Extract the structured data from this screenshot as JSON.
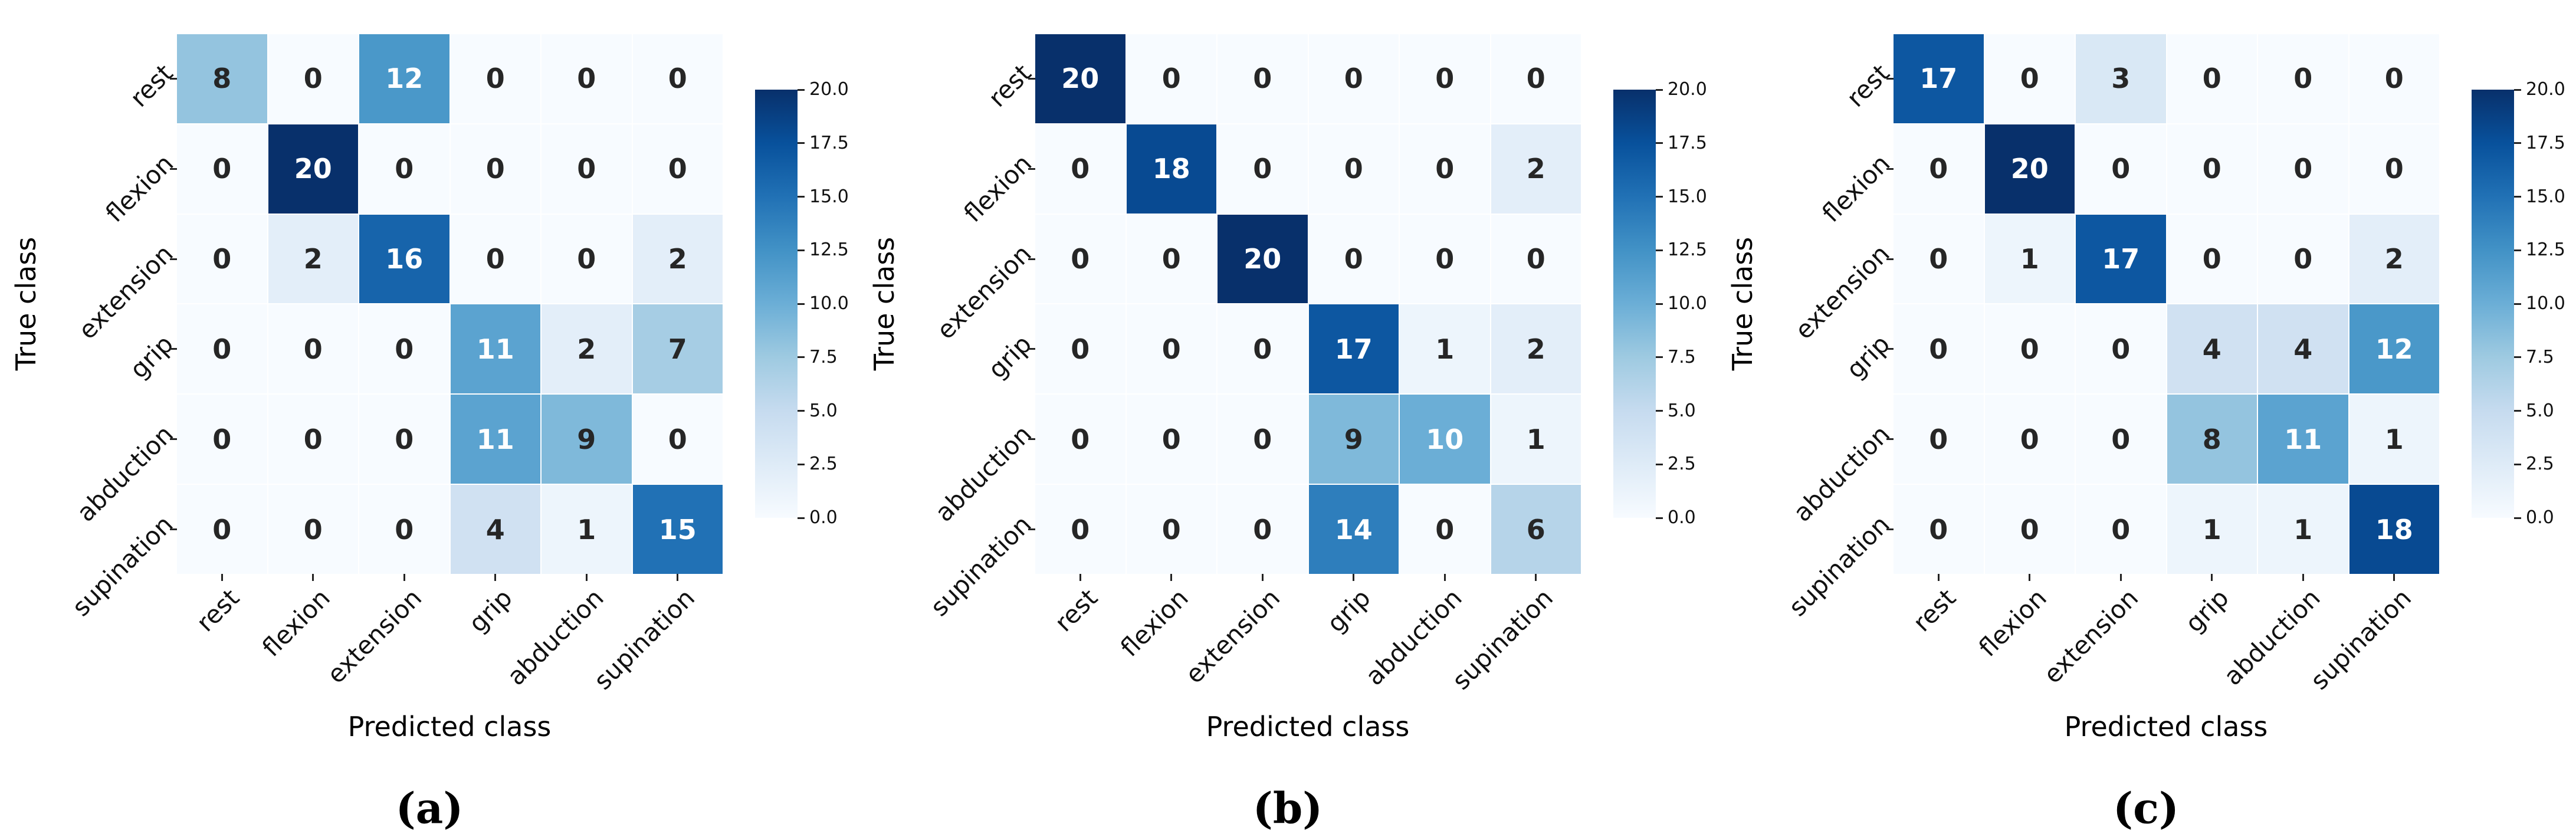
{
  "figure": {
    "background": "#ffffff",
    "x_label": "Predicted class",
    "y_label": "True class",
    "classes": [
      "rest",
      "flexion",
      "extension",
      "grip",
      "abduction",
      "supination"
    ],
    "annot_colors": {
      "dark": "#262626",
      "light": "#ffffff"
    },
    "tick_color": "#222222",
    "colormap": {
      "name": "Blues",
      "stops": [
        [
          0.0,
          "#f7fbff"
        ],
        [
          0.125,
          "#deebf7"
        ],
        [
          0.25,
          "#c6dbef"
        ],
        [
          0.375,
          "#9ecae1"
        ],
        [
          0.5,
          "#6baed6"
        ],
        [
          0.625,
          "#4292c6"
        ],
        [
          0.75,
          "#2171b5"
        ],
        [
          0.875,
          "#08519c"
        ],
        [
          1.0,
          "#08306b"
        ]
      ]
    },
    "colorbar": {
      "min": 0,
      "max": 20,
      "tick_labels_top_to_bottom": [
        "20.0",
        "17.5",
        "15.0",
        "12.5",
        "10.0",
        "7.5",
        "5.0",
        "2.5",
        "0.0"
      ]
    }
  },
  "panels": [
    {
      "caption": "(a)"
    },
    {
      "caption": "(b)"
    },
    {
      "caption": "(c)"
    }
  ],
  "chart_data": [
    {
      "type": "heatmap",
      "title": "(a)",
      "xlabel": "Predicted class",
      "ylabel": "True class",
      "categories_x": [
        "rest",
        "flexion",
        "extension",
        "grip",
        "abduction",
        "supination"
      ],
      "categories_y": [
        "rest",
        "flexion",
        "extension",
        "grip",
        "abduction",
        "supination"
      ],
      "vmin": 0,
      "vmax": 20,
      "colormap": "Blues",
      "legend_position": "right-colorbar",
      "values": [
        [
          8,
          0,
          12,
          0,
          0,
          0
        ],
        [
          0,
          20,
          0,
          0,
          0,
          0
        ],
        [
          0,
          2,
          16,
          0,
          0,
          2
        ],
        [
          0,
          0,
          0,
          11,
          2,
          7
        ],
        [
          0,
          0,
          0,
          11,
          9,
          0
        ],
        [
          0,
          0,
          0,
          4,
          1,
          15
        ]
      ]
    },
    {
      "type": "heatmap",
      "title": "(b)",
      "xlabel": "Predicted class",
      "ylabel": "True class",
      "categories_x": [
        "rest",
        "flexion",
        "extension",
        "grip",
        "abduction",
        "supination"
      ],
      "categories_y": [
        "rest",
        "flexion",
        "extension",
        "grip",
        "abduction",
        "supination"
      ],
      "vmin": 0,
      "vmax": 20,
      "colormap": "Blues",
      "legend_position": "right-colorbar",
      "values": [
        [
          20,
          0,
          0,
          0,
          0,
          0
        ],
        [
          0,
          18,
          0,
          0,
          0,
          2
        ],
        [
          0,
          0,
          20,
          0,
          0,
          0
        ],
        [
          0,
          0,
          0,
          17,
          1,
          2
        ],
        [
          0,
          0,
          0,
          9,
          10,
          1
        ],
        [
          0,
          0,
          0,
          14,
          0,
          6
        ]
      ]
    },
    {
      "type": "heatmap",
      "title": "(c)",
      "xlabel": "Predicted class",
      "ylabel": "True class",
      "categories_x": [
        "rest",
        "flexion",
        "extension",
        "grip",
        "abduction",
        "supination"
      ],
      "categories_y": [
        "rest",
        "flexion",
        "extension",
        "grip",
        "abduction",
        "supination"
      ],
      "vmin": 0,
      "vmax": 20,
      "colormap": "Blues",
      "legend_position": "right-colorbar",
      "values": [
        [
          17,
          0,
          3,
          0,
          0,
          0
        ],
        [
          0,
          20,
          0,
          0,
          0,
          0
        ],
        [
          0,
          1,
          17,
          0,
          0,
          2
        ],
        [
          0,
          0,
          0,
          4,
          4,
          12
        ],
        [
          0,
          0,
          0,
          8,
          11,
          1
        ],
        [
          0,
          0,
          0,
          1,
          1,
          18
        ]
      ]
    }
  ]
}
